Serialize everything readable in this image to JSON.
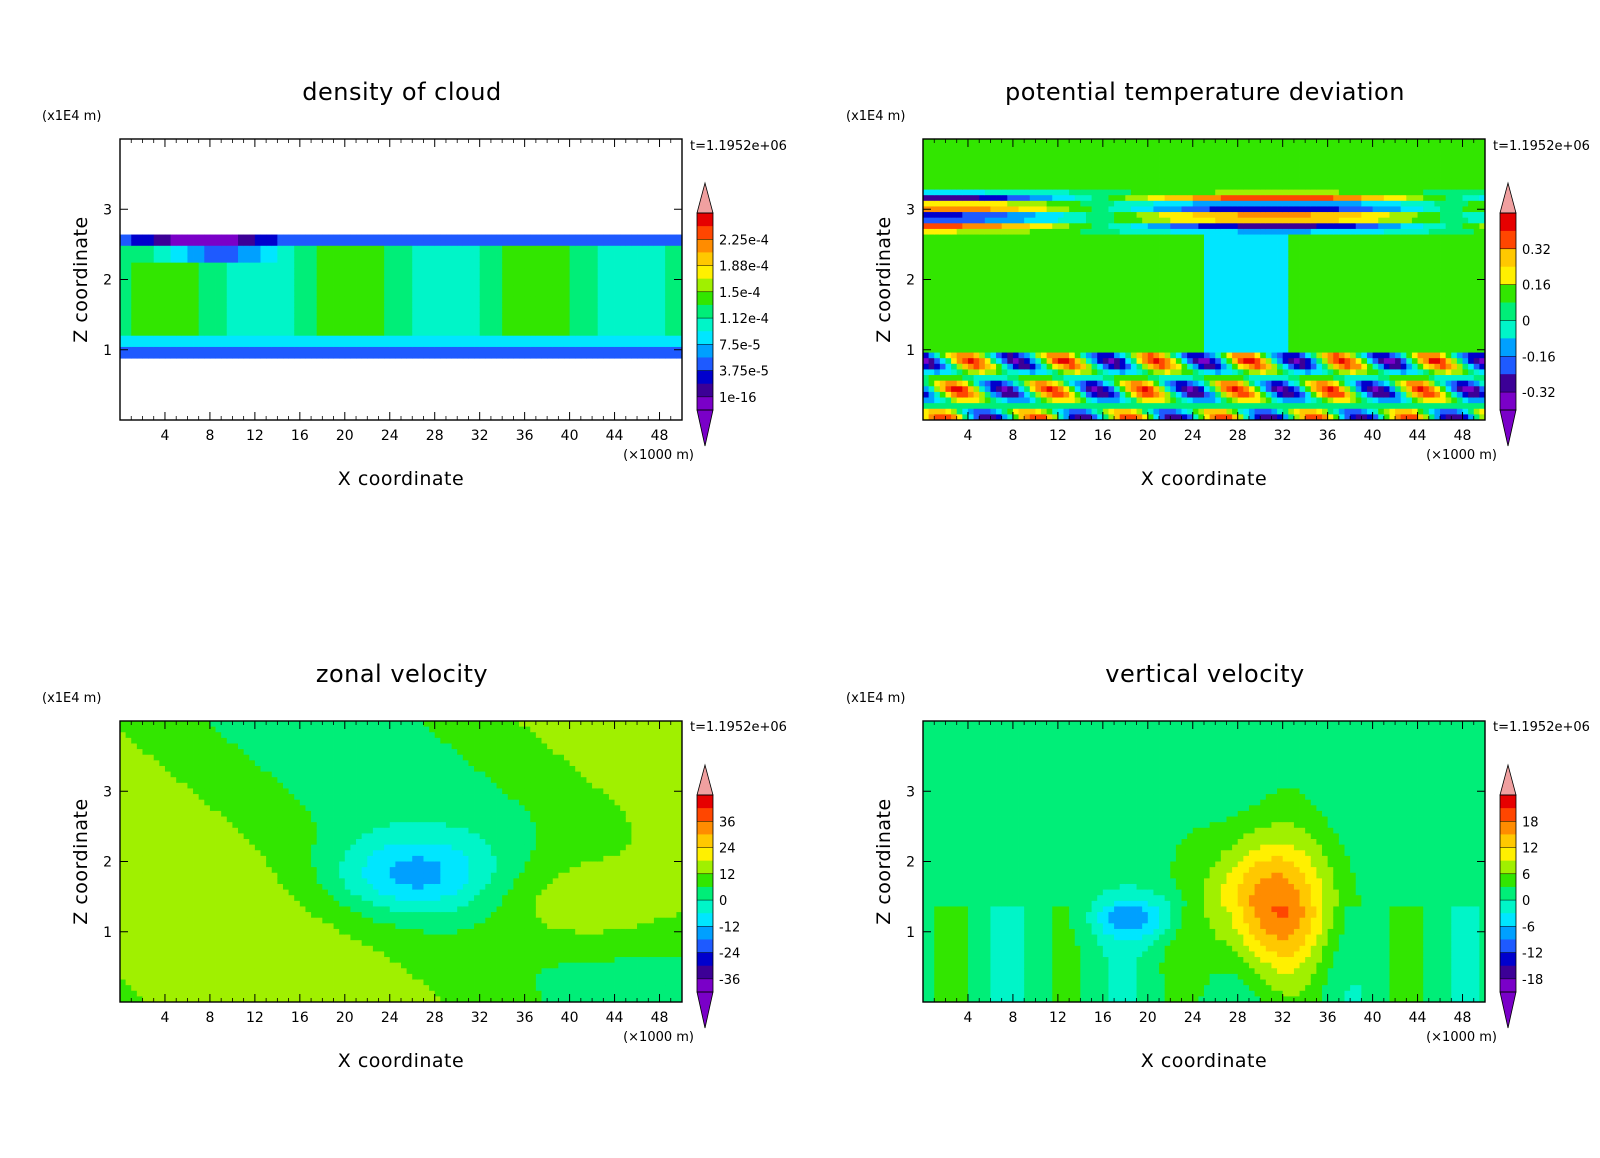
{
  "figure": {
    "colors": {
      "background": "#ffffff",
      "palette_low_to_high": [
        "#7a00c8",
        "#3c0096",
        "#0000cd",
        "#1e5aff",
        "#00a0ff",
        "#00e6ff",
        "#00f5c8",
        "#00ee78",
        "#32e600",
        "#a0f000",
        "#fff000",
        "#ffc800",
        "#ff8c00",
        "#ff4600",
        "#e60000",
        "#f0a0a0"
      ]
    }
  },
  "chart_data": [
    {
      "type": "heatmap",
      "title": "density of cloud",
      "xlabel": "X coordinate",
      "ylabel": "Z coordinate",
      "x_unit": "(×1000 m)",
      "y_unit": "(x1E4 m)",
      "time_label": "t=1.1952e+06",
      "xlim": [
        0,
        50
      ],
      "ylim": [
        0,
        4
      ],
      "x_ticks": [
        "4",
        "8",
        "12",
        "16",
        "20",
        "24",
        "28",
        "32",
        "36",
        "40",
        "44",
        "48"
      ],
      "y_ticks": [
        "1",
        "2",
        "3"
      ],
      "colorbar_labels": [
        "2.25e-4",
        "1.88e-4",
        "1.5e-4",
        "1.12e-4",
        "7.5e-5",
        "3.75e-5",
        "1e-16"
      ],
      "colorbar_values": [
        0.000225,
        0.000188,
        0.00015,
        0.000112,
        7.5e-05,
        3.75e-05,
        1e-16
      ]
    },
    {
      "type": "heatmap",
      "title": "potential temperature deviation",
      "xlabel": "X coordinate",
      "ylabel": "Z coordinate",
      "x_unit": "(×1000 m)",
      "y_unit": "(x1E4 m)",
      "time_label": "t=1.1952e+06",
      "xlim": [
        0,
        50
      ],
      "ylim": [
        0,
        4
      ],
      "x_ticks": [
        "4",
        "8",
        "12",
        "16",
        "20",
        "24",
        "28",
        "32",
        "36",
        "40",
        "44",
        "48"
      ],
      "y_ticks": [
        "1",
        "2",
        "3"
      ],
      "colorbar_labels": [
        "0.32",
        "0.16",
        "0",
        "-0.16",
        "-0.32"
      ],
      "colorbar_values": [
        0.32,
        0.16,
        0,
        -0.16,
        -0.32
      ]
    },
    {
      "type": "heatmap",
      "title": "zonal velocity",
      "xlabel": "X coordinate",
      "ylabel": "Z coordinate",
      "x_unit": "(×1000 m)",
      "y_unit": "(x1E4 m)",
      "time_label": "t=1.1952e+06",
      "xlim": [
        0,
        50
      ],
      "ylim": [
        0,
        4
      ],
      "x_ticks": [
        "4",
        "8",
        "12",
        "16",
        "20",
        "24",
        "28",
        "32",
        "36",
        "40",
        "44",
        "48"
      ],
      "y_ticks": [
        "1",
        "2",
        "3"
      ],
      "colorbar_labels": [
        "36",
        "24",
        "12",
        "0",
        "-12",
        "-24",
        "-36"
      ],
      "colorbar_values": [
        36,
        24,
        12,
        0,
        -12,
        -24,
        -36
      ]
    },
    {
      "type": "heatmap",
      "title": "vertical velocity",
      "xlabel": "X coordinate",
      "ylabel": "Z coordinate",
      "x_unit": "(×1000 m)",
      "y_unit": "(x1E4 m)",
      "time_label": "t=1.1952e+06",
      "xlim": [
        0,
        50
      ],
      "ylim": [
        0,
        4
      ],
      "x_ticks": [
        "4",
        "8",
        "12",
        "16",
        "20",
        "24",
        "28",
        "32",
        "36",
        "40",
        "44",
        "48"
      ],
      "y_ticks": [
        "1",
        "2",
        "3"
      ],
      "colorbar_labels": [
        "18",
        "12",
        "6",
        "0",
        "-6",
        "-12",
        "-18"
      ],
      "colorbar_values": [
        18,
        12,
        6,
        0,
        -6,
        -12,
        -18
      ]
    }
  ]
}
